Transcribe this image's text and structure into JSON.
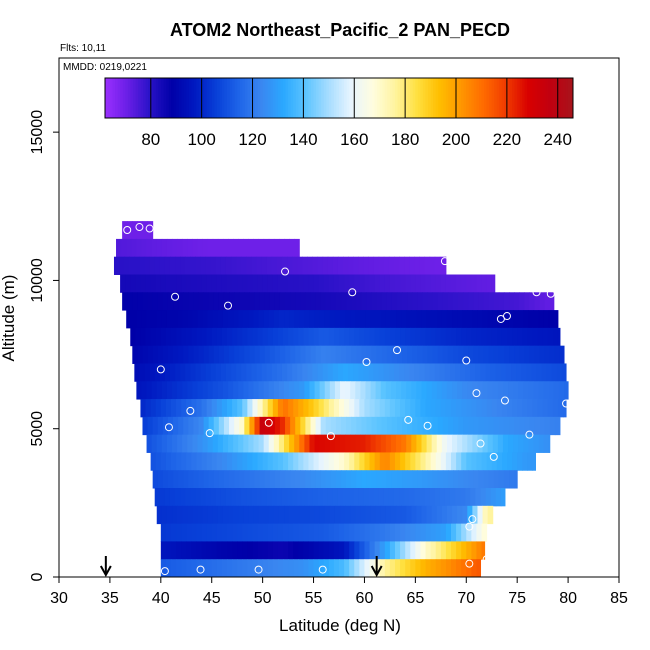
{
  "chart_data": {
    "type": "heatmap",
    "title": "ATOM2 Northeast_Pacific_2 PAN_PECD",
    "flights_note": "Flts: 10,11",
    "date_note": "MMDD: 0219,0221",
    "xlabel": "Latitude (deg N)",
    "ylabel": "Altitude (m)",
    "xlim": [
      30,
      85
    ],
    "ylim": [
      0,
      17500
    ],
    "x_ticks": [
      "30",
      "35",
      "40",
      "45",
      "50",
      "55",
      "60",
      "65",
      "70",
      "75",
      "80",
      "85"
    ],
    "x_tick_values": [
      30,
      35,
      40,
      45,
      50,
      55,
      60,
      65,
      70,
      75,
      80,
      85
    ],
    "y_ticks": [
      "0",
      "5000",
      "10000",
      "15000"
    ],
    "y_tick_values": [
      0,
      5000,
      10000,
      15000
    ],
    "colorbar": {
      "vmin": 62,
      "vmax": 246,
      "tick_values": [
        80,
        100,
        120,
        140,
        160,
        180,
        200,
        220,
        240
      ],
      "tick_labels": [
        "80",
        "100",
        "120",
        "140",
        "160",
        "180",
        "200",
        "220",
        "240"
      ],
      "colors": [
        "#9b30ff",
        "#6a1fe6",
        "#2a12c8",
        "#0000a8",
        "#0018c0",
        "#0840d8",
        "#1e64e8",
        "#3a86f0",
        "#2aa8ff",
        "#5cc4ff",
        "#a4dcff",
        "#e6f4ff",
        "#fffde0",
        "#fff4a0",
        "#ffe040",
        "#ffbe00",
        "#ff9600",
        "#ff6a00",
        "#f03a00",
        "#d80000",
        "#c00010",
        "#a8141c"
      ]
    },
    "arrows": [
      {
        "lat": 34.6,
        "label": "↓"
      },
      {
        "lat": 61.2,
        "label": "↓"
      }
    ],
    "field_layers": [
      {
        "alt_min": 11400,
        "alt_max": 12000,
        "lat_start": 36.2,
        "lat_end": 39.2,
        "profile": [
          [
            36,
            70
          ],
          [
            39,
            70
          ]
        ]
      },
      {
        "alt_min": 10800,
        "alt_max": 11400,
        "lat_start": 35.6,
        "lat_end": 53.6,
        "profile": [
          [
            36,
            74
          ],
          [
            40,
            72
          ],
          [
            45,
            70
          ],
          [
            53,
            70
          ]
        ]
      },
      {
        "alt_min": 10200,
        "alt_max": 10800,
        "lat_start": 35.4,
        "lat_end": 68.0,
        "profile": [
          [
            35,
            80
          ],
          [
            45,
            78
          ],
          [
            55,
            74
          ],
          [
            60,
            72
          ],
          [
            68,
            70
          ]
        ]
      },
      {
        "alt_min": 9600,
        "alt_max": 10200,
        "lat_start": 36.0,
        "lat_end": 72.8,
        "profile": [
          [
            36,
            84
          ],
          [
            45,
            82
          ],
          [
            55,
            80
          ],
          [
            62,
            76
          ],
          [
            72,
            72
          ]
        ]
      },
      {
        "alt_min": 9000,
        "alt_max": 9600,
        "lat_start": 36.2,
        "lat_end": 78.6,
        "profile": [
          [
            36,
            88
          ],
          [
            45,
            86
          ],
          [
            55,
            84
          ],
          [
            65,
            80
          ],
          [
            75,
            76
          ],
          [
            78,
            72
          ]
        ]
      },
      {
        "alt_min": 8400,
        "alt_max": 9000,
        "lat_start": 36.6,
        "lat_end": 79.0,
        "profile": [
          [
            36,
            88
          ],
          [
            42,
            90
          ],
          [
            48,
            96
          ],
          [
            52,
            100
          ],
          [
            60,
            96
          ],
          [
            70,
            92
          ],
          [
            79,
            88
          ]
        ]
      },
      {
        "alt_min": 7800,
        "alt_max": 8400,
        "lat_start": 37.0,
        "lat_end": 79.2,
        "profile": [
          [
            37,
            88
          ],
          [
            42,
            94
          ],
          [
            50,
            104
          ],
          [
            56,
            112
          ],
          [
            62,
            106
          ],
          [
            70,
            100
          ],
          [
            79,
            96
          ]
        ]
      },
      {
        "alt_min": 7200,
        "alt_max": 7800,
        "lat_start": 37.2,
        "lat_end": 79.6,
        "profile": [
          [
            37,
            90
          ],
          [
            44,
            100
          ],
          [
            50,
            110
          ],
          [
            56,
            122
          ],
          [
            62,
            116
          ],
          [
            70,
            108
          ],
          [
            79,
            102
          ]
        ]
      },
      {
        "alt_min": 6600,
        "alt_max": 7200,
        "lat_start": 37.4,
        "lat_end": 79.8,
        "profile": [
          [
            37,
            92
          ],
          [
            44,
            104
          ],
          [
            52,
            118
          ],
          [
            58,
            132
          ],
          [
            64,
            124
          ],
          [
            72,
            114
          ],
          [
            80,
            108
          ]
        ]
      },
      {
        "alt_min": 6000,
        "alt_max": 6600,
        "lat_start": 37.6,
        "lat_end": 80.0,
        "profile": [
          [
            38,
            96
          ],
          [
            46,
            110
          ],
          [
            54,
            128
          ],
          [
            58,
            160
          ],
          [
            62,
            140
          ],
          [
            70,
            124
          ],
          [
            80,
            116
          ]
        ]
      },
      {
        "alt_min": 5400,
        "alt_max": 6000,
        "lat_start": 38.0,
        "lat_end": 79.8,
        "profile": [
          [
            38,
            100
          ],
          [
            44,
            118
          ],
          [
            48,
            140
          ],
          [
            52,
            210
          ],
          [
            55,
            190
          ],
          [
            60,
            150
          ],
          [
            66,
            132
          ],
          [
            74,
            122
          ],
          [
            80,
            116
          ]
        ]
      },
      {
        "alt_min": 4800,
        "alt_max": 5400,
        "lat_start": 38.2,
        "lat_end": 79.2,
        "profile": [
          [
            38,
            104
          ],
          [
            44,
            124
          ],
          [
            48,
            170
          ],
          [
            50,
            236
          ],
          [
            52,
            222
          ],
          [
            56,
            150
          ],
          [
            62,
            140
          ],
          [
            70,
            128
          ],
          [
            79,
            122
          ]
        ]
      },
      {
        "alt_min": 4200,
        "alt_max": 4800,
        "lat_start": 38.6,
        "lat_end": 78.2,
        "profile": [
          [
            38,
            108
          ],
          [
            44,
            126
          ],
          [
            50,
            150
          ],
          [
            55,
            228
          ],
          [
            60,
            224
          ],
          [
            64,
            208
          ],
          [
            68,
            160
          ],
          [
            74,
            132
          ],
          [
            78,
            126
          ]
        ]
      },
      {
        "alt_min": 3600,
        "alt_max": 4200,
        "lat_start": 39.0,
        "lat_end": 76.8,
        "profile": [
          [
            39,
            110
          ],
          [
            46,
            124
          ],
          [
            52,
            140
          ],
          [
            58,
            170
          ],
          [
            62,
            206
          ],
          [
            66,
            176
          ],
          [
            70,
            140
          ],
          [
            76,
            128
          ]
        ]
      },
      {
        "alt_min": 3000,
        "alt_max": 3600,
        "lat_start": 39.2,
        "lat_end": 75.0,
        "profile": [
          [
            39,
            108
          ],
          [
            46,
            116
          ],
          [
            54,
            124
          ],
          [
            60,
            132
          ],
          [
            66,
            128
          ],
          [
            70,
            124
          ],
          [
            75,
            120
          ]
        ]
      },
      {
        "alt_min": 2400,
        "alt_max": 3000,
        "lat_start": 39.4,
        "lat_end": 73.8,
        "profile": [
          [
            39,
            104
          ],
          [
            48,
            110
          ],
          [
            56,
            114
          ],
          [
            64,
            116
          ],
          [
            70,
            120
          ],
          [
            74,
            130
          ]
        ]
      },
      {
        "alt_min": 1800,
        "alt_max": 2400,
        "lat_start": 39.6,
        "lat_end": 72.6,
        "profile": [
          [
            39,
            102
          ],
          [
            48,
            106
          ],
          [
            56,
            108
          ],
          [
            64,
            112
          ],
          [
            70,
            124
          ],
          [
            72,
            176
          ]
        ]
      },
      {
        "alt_min": 1200,
        "alt_max": 1800,
        "lat_start": 40.0,
        "lat_end": 72.0,
        "profile": [
          [
            40,
            104
          ],
          [
            48,
            108
          ],
          [
            56,
            112
          ],
          [
            62,
            120
          ],
          [
            68,
            130
          ],
          [
            72,
            170
          ]
        ]
      },
      {
        "alt_min": 600,
        "alt_max": 1200,
        "lat_start": 40.0,
        "lat_end": 71.8,
        "profile": [
          [
            40,
            96
          ],
          [
            46,
            90
          ],
          [
            52,
            86
          ],
          [
            58,
            96
          ],
          [
            62,
            130
          ],
          [
            66,
            170
          ],
          [
            70,
            196
          ],
          [
            72,
            210
          ]
        ]
      },
      {
        "alt_min": 0,
        "alt_max": 600,
        "lat_start": 40.0,
        "lat_end": 71.4,
        "profile": [
          [
            40,
            112
          ],
          [
            46,
            118
          ],
          [
            54,
            126
          ],
          [
            58,
            138
          ],
          [
            62,
            176
          ],
          [
            66,
            196
          ],
          [
            70,
            210
          ],
          [
            71,
            214
          ]
        ]
      }
    ],
    "observations": [
      {
        "lat": 34.9,
        "alt": 10950
      },
      {
        "lat": 36.7,
        "alt": 11700
      },
      {
        "lat": 37.9,
        "alt": 11800
      },
      {
        "lat": 38.9,
        "alt": 11750
      },
      {
        "lat": 41.4,
        "alt": 9450
      },
      {
        "lat": 46.6,
        "alt": 9150
      },
      {
        "lat": 52.2,
        "alt": 10300
      },
      {
        "lat": 58.8,
        "alt": 9600
      },
      {
        "lat": 67.9,
        "alt": 10650
      },
      {
        "lat": 73.9,
        "alt": 10000
      },
      {
        "lat": 76.9,
        "alt": 9600
      },
      {
        "lat": 78.3,
        "alt": 9550
      },
      {
        "lat": 73.4,
        "alt": 8700
      },
      {
        "lat": 74.0,
        "alt": 8800
      },
      {
        "lat": 63.2,
        "alt": 7650
      },
      {
        "lat": 60.2,
        "alt": 7250
      },
      {
        "lat": 70.0,
        "alt": 7300
      },
      {
        "lat": 40.0,
        "alt": 7000
      },
      {
        "lat": 71.0,
        "alt": 6200
      },
      {
        "lat": 73.8,
        "alt": 5950
      },
      {
        "lat": 79.8,
        "alt": 5850
      },
      {
        "lat": 42.9,
        "alt": 5600
      },
      {
        "lat": 64.3,
        "alt": 5300
      },
      {
        "lat": 66.2,
        "alt": 5100
      },
      {
        "lat": 40.8,
        "alt": 5050
      },
      {
        "lat": 44.8,
        "alt": 4850
      },
      {
        "lat": 50.6,
        "alt": 5200
      },
      {
        "lat": 56.7,
        "alt": 4750
      },
      {
        "lat": 71.4,
        "alt": 4500
      },
      {
        "lat": 76.2,
        "alt": 4800
      },
      {
        "lat": 72.7,
        "alt": 4050
      },
      {
        "lat": 70.6,
        "alt": 1950
      },
      {
        "lat": 70.3,
        "alt": 1700
      },
      {
        "lat": 43.9,
        "alt": 250
      },
      {
        "lat": 49.6,
        "alt": 250
      },
      {
        "lat": 55.9,
        "alt": 250
      },
      {
        "lat": 40.4,
        "alt": 200
      },
      {
        "lat": 70.3,
        "alt": 450
      },
      {
        "lat": 72.0,
        "alt": 600
      }
    ]
  }
}
